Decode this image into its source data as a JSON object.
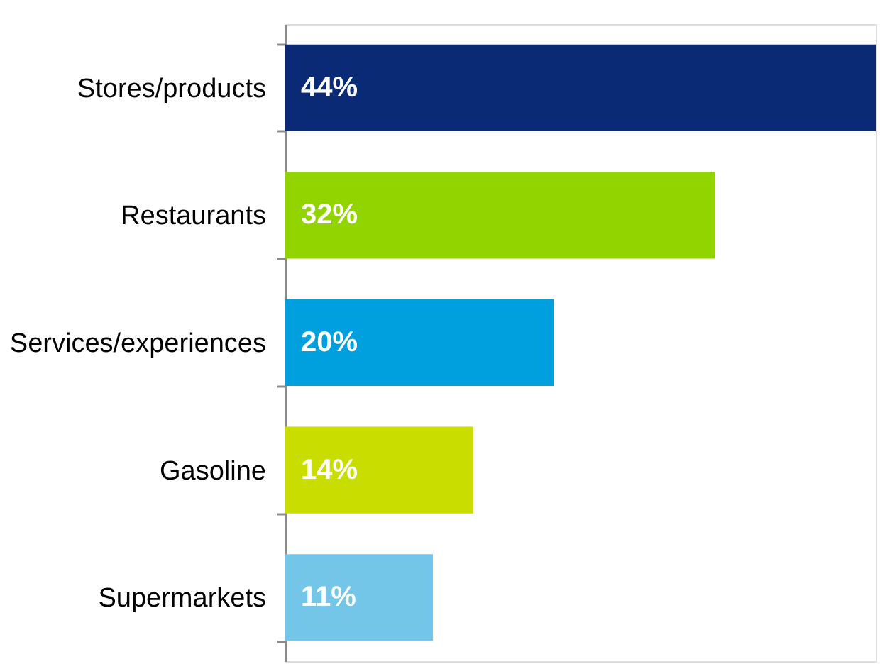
{
  "chart_data": {
    "type": "bar",
    "orientation": "horizontal",
    "categories": [
      "Stores/products",
      "Restaurants",
      "Services/experiences",
      "Gasoline",
      "Supermarkets"
    ],
    "values": [
      44,
      32,
      20,
      14,
      11
    ],
    "colors": [
      "#0b2a75",
      "#92d400",
      "#00a0df",
      "#c9dd00",
      "#74c6e8"
    ],
    "value_labels": [
      "44%",
      "32%",
      "20%",
      "14%",
      "11%"
    ],
    "xlim": [
      0,
      44
    ]
  }
}
